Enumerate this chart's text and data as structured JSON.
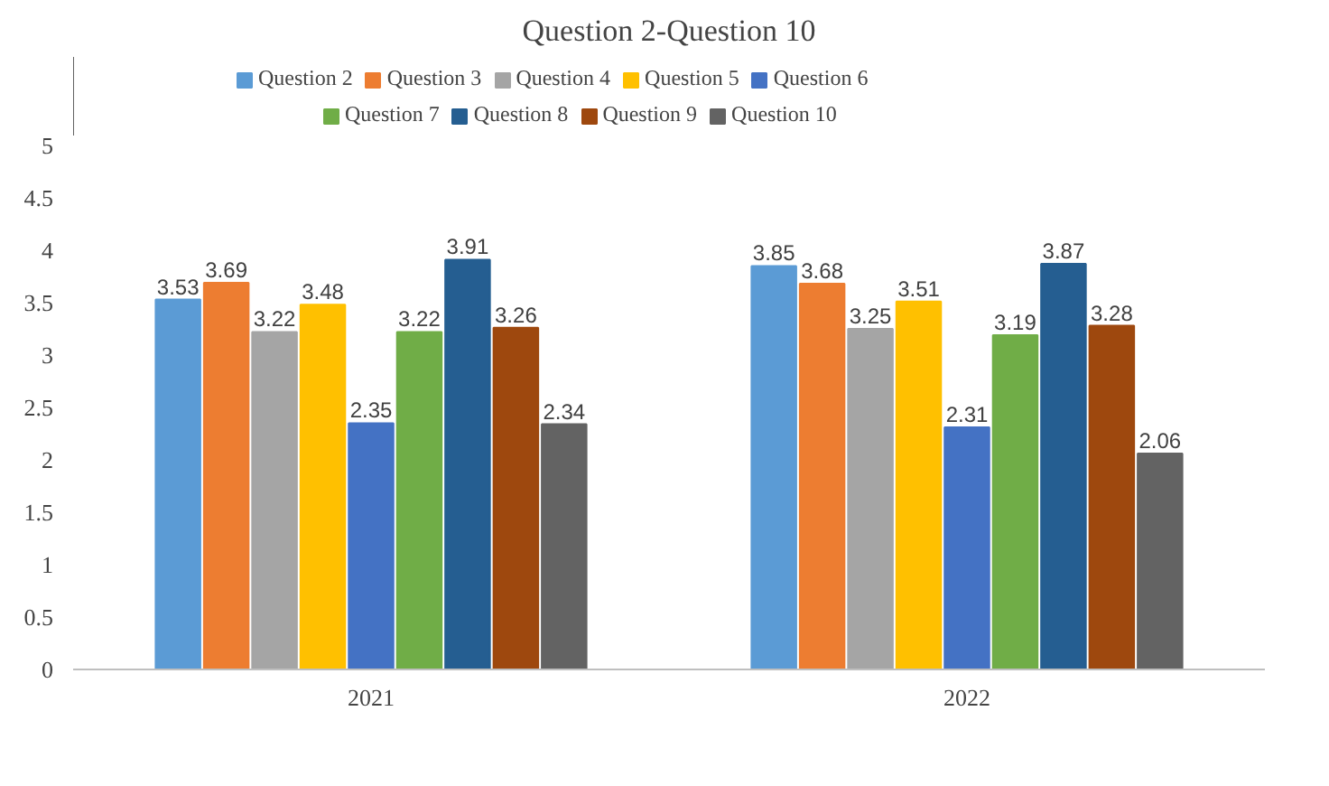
{
  "chart_data": {
    "type": "bar",
    "title": "Question 2-Question 10",
    "categories": [
      "2021",
      "2022"
    ],
    "series": [
      {
        "name": "Question 2",
        "color": "#5b9bd5",
        "values": [
          3.53,
          3.85
        ]
      },
      {
        "name": "Question 3",
        "color": "#ed7d31",
        "values": [
          3.69,
          3.68
        ]
      },
      {
        "name": "Question 4",
        "color": "#a5a5a5",
        "values": [
          3.22,
          3.25
        ]
      },
      {
        "name": "Question 5",
        "color": "#ffc000",
        "values": [
          3.48,
          3.51
        ]
      },
      {
        "name": "Question 6",
        "color": "#4472c4",
        "values": [
          2.35,
          2.31
        ]
      },
      {
        "name": "Question 7",
        "color": "#70ad47",
        "values": [
          3.22,
          3.19
        ]
      },
      {
        "name": "Question 8",
        "color": "#255e91",
        "values": [
          3.91,
          3.87
        ]
      },
      {
        "name": "Question 9",
        "color": "#9e480e",
        "values": [
          3.26,
          3.28
        ]
      },
      {
        "name": "Question 10",
        "color": "#636363",
        "values": [
          2.34,
          2.06
        ]
      }
    ],
    "ylim": [
      0,
      5
    ],
    "yticks": [
      0,
      0.5,
      1,
      1.5,
      2,
      2.5,
      3,
      3.5,
      4,
      4.5,
      5
    ],
    "grid": false,
    "legend": "top",
    "data_labels": true
  }
}
